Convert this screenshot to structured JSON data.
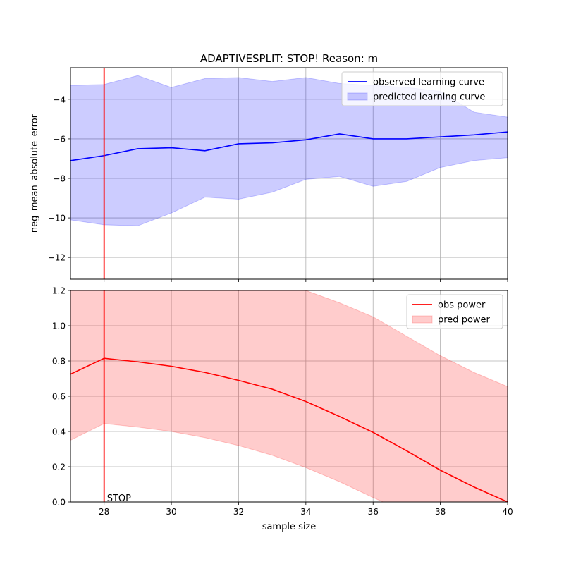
{
  "figure": {
    "title": "ADAPTIVESPLIT: STOP!  Reason: m",
    "xlabel": "sample size",
    "stop_label": "STOP"
  },
  "chart_data": [
    {
      "type": "line",
      "panel": "top",
      "ylabel": "neg_mean_absolute_error",
      "xlim": [
        27,
        40
      ],
      "ylim": [
        -13.1,
        -2.4
      ],
      "xticks": [
        28,
        30,
        32,
        34,
        36,
        38,
        40
      ],
      "yticks": [
        -12,
        -10,
        -8,
        -6,
        -4
      ],
      "ytick_labels": [
        "−12",
        "−10",
        "−8",
        "−6",
        "−4"
      ],
      "grid": true,
      "legend_position": "upper right",
      "x": [
        27,
        28,
        29,
        30,
        31,
        32,
        33,
        34,
        35,
        36,
        37,
        38,
        39,
        40
      ],
      "series": [
        {
          "name": "observed learning curve",
          "kind": "line",
          "color": "#0000ff",
          "values": [
            -7.1,
            -6.85,
            -6.5,
            -6.45,
            -6.6,
            -6.25,
            -6.2,
            -6.05,
            -5.75,
            -6.0,
            -6.0,
            -5.9,
            -5.8,
            -5.65
          ]
        },
        {
          "name": "predicted learning curve",
          "kind": "band",
          "color": "#0000ff",
          "upper": [
            -3.3,
            -3.25,
            -2.8,
            -3.4,
            -2.95,
            -2.9,
            -3.1,
            -2.9,
            -3.2,
            -3.3,
            -3.4,
            -3.6,
            -4.65,
            -4.9
          ],
          "lower": [
            -10.1,
            -10.35,
            -10.4,
            -9.75,
            -8.95,
            -9.05,
            -8.7,
            -8.05,
            -7.9,
            -8.4,
            -8.15,
            -7.45,
            -7.1,
            -6.95
          ]
        }
      ],
      "vline": {
        "x": 28,
        "color": "#ff0000"
      }
    },
    {
      "type": "line",
      "panel": "bottom",
      "ylabel": "",
      "xlim": [
        27,
        40
      ],
      "ylim": [
        0.0,
        1.2
      ],
      "xticks": [
        28,
        30,
        32,
        34,
        36,
        38,
        40
      ],
      "yticks": [
        0.0,
        0.2,
        0.4,
        0.6,
        0.8,
        1.0,
        1.2
      ],
      "ytick_labels": [
        "0.0",
        "0.2",
        "0.4",
        "0.6",
        "0.8",
        "1.0",
        "1.2"
      ],
      "grid": true,
      "legend_position": "upper right",
      "x": [
        27,
        28,
        29,
        30,
        31,
        32,
        33,
        34,
        35,
        36,
        37,
        38,
        39,
        40
      ],
      "series": [
        {
          "name": "obs power",
          "kind": "line",
          "color": "#ff0000",
          "values": [
            0.725,
            0.815,
            0.795,
            0.77,
            0.735,
            0.69,
            0.64,
            0.57,
            0.485,
            0.395,
            0.29,
            0.18,
            0.085,
            0.0
          ]
        },
        {
          "name": "pred power",
          "kind": "band",
          "color": "#ff0000",
          "upper": [
            1.2,
            1.2,
            1.2,
            1.2,
            1.2,
            1.2,
            1.2,
            1.2,
            1.13,
            1.05,
            0.94,
            0.83,
            0.735,
            0.655
          ],
          "lower": [
            0.35,
            0.445,
            0.425,
            0.4,
            0.365,
            0.32,
            0.265,
            0.195,
            0.115,
            0.025,
            -0.06,
            -0.09,
            -0.12,
            -0.15
          ]
        }
      ],
      "vline": {
        "x": 28,
        "color": "#ff0000"
      }
    }
  ]
}
